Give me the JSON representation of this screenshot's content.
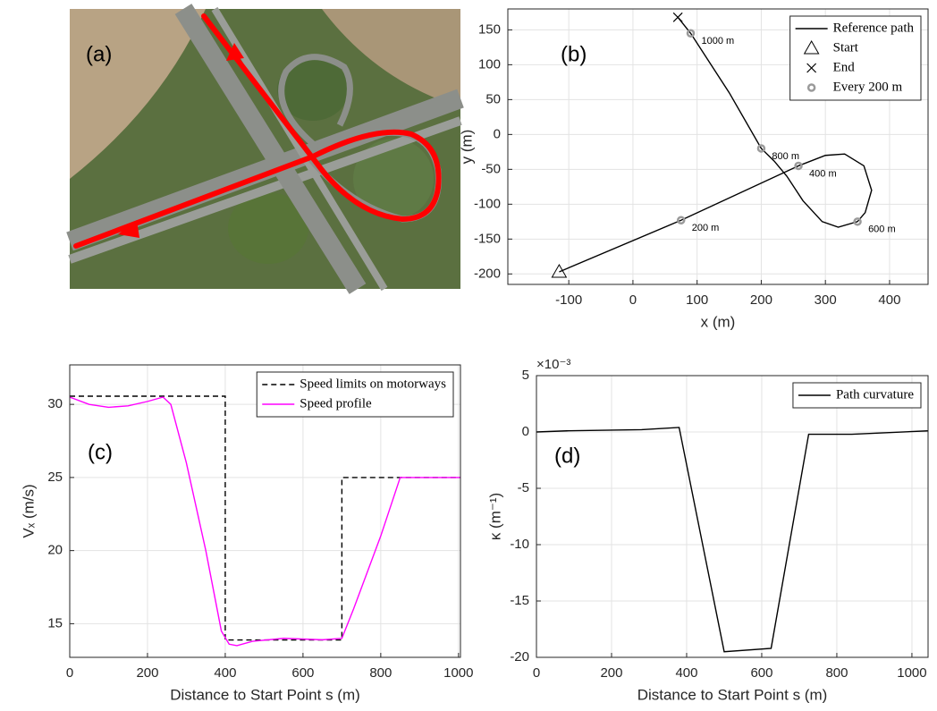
{
  "image": {
    "label": "(a)"
  },
  "chart_data": [
    {
      "type": "line",
      "panel_label": "(b)",
      "xlabel": "x (m)",
      "ylabel": "y (m)",
      "xlim": [
        -195,
        460
      ],
      "ylim": [
        -215,
        180
      ],
      "xticks": [
        -100,
        0,
        100,
        200,
        300,
        400
      ],
      "yticks": [
        -200,
        -150,
        -100,
        -50,
        0,
        50,
        100,
        150
      ],
      "grid": true,
      "legend": "upper right",
      "series": [
        {
          "name": "Reference path",
          "color": "#000000",
          "marker": "none",
          "x": [
            -115,
            75,
            258,
            300,
            330,
            360,
            372,
            362,
            350,
            320,
            295,
            265,
            240,
            220,
            200,
            150,
            90,
            70
          ],
          "values": [
            -197,
            -123,
            -45,
            -30,
            -28,
            -45,
            -80,
            -112,
            -125,
            -133,
            -125,
            -95,
            -60,
            -38,
            -20,
            60,
            145,
            168
          ]
        },
        {
          "name": "Start",
          "color": "#000000",
          "marker": "triangle",
          "x": [
            -115
          ],
          "values": [
            -197
          ]
        },
        {
          "name": "End",
          "color": "#000000",
          "marker": "x",
          "x": [
            70
          ],
          "values": [
            168
          ]
        },
        {
          "name": "Every 200 m",
          "color": "#9a9a9a",
          "marker": "circle",
          "x": [
            75,
            258,
            350,
            200,
            90
          ],
          "values": [
            -123,
            -45,
            -125,
            -20,
            145
          ],
          "labels": [
            "200 m",
            "400 m",
            "600 m",
            "800 m",
            "1000 m"
          ]
        }
      ]
    },
    {
      "type": "line",
      "panel_label": "(c)",
      "xlabel": "Distance to Start Point s (m)",
      "ylabel": "Vₓ (m/s)",
      "xlim": [
        0,
        1005
      ],
      "ylim": [
        12.7,
        32.7
      ],
      "xticks": [
        0,
        200,
        400,
        600,
        800,
        1000
      ],
      "yticks": [
        15,
        20,
        25,
        30
      ],
      "grid": true,
      "legend": "upper right",
      "series": [
        {
          "name": "Speed limits on motorways",
          "color": "#000000",
          "style": "dashed",
          "marker": "none",
          "x": [
            0,
            400,
            400,
            700,
            700,
            1005
          ],
          "values": [
            30.56,
            30.56,
            13.89,
            13.89,
            25,
            25
          ]
        },
        {
          "name": "Speed profile",
          "color": "#ff00ff",
          "marker": "none",
          "x": [
            0,
            50,
            100,
            150,
            200,
            240,
            260,
            300,
            350,
            390,
            410,
            430,
            470,
            550,
            650,
            700,
            730,
            800,
            850,
            1005
          ],
          "values": [
            30.5,
            30,
            29.8,
            29.9,
            30.2,
            30.5,
            30,
            26,
            20,
            14.5,
            13.6,
            13.5,
            13.8,
            14,
            13.9,
            14,
            16,
            21,
            25,
            25
          ]
        }
      ]
    },
    {
      "type": "line",
      "panel_label": "(d)",
      "xlabel": "Distance to Start Point s (m)",
      "ylabel": "κ (m⁻¹)",
      "y_multiplier": "×10⁻³",
      "xlim": [
        0,
        1043
      ],
      "ylim": [
        -20,
        5
      ],
      "xticks": [
        0,
        200,
        400,
        600,
        800,
        1000
      ],
      "yticks": [
        -20,
        -15,
        -10,
        -5,
        0,
        5
      ],
      "grid": true,
      "legend": "upper right",
      "series": [
        {
          "name": "Path curvature",
          "color": "#000000",
          "marker": "none",
          "x": [
            0,
            80,
            280,
            380,
            500,
            625,
            725,
            840,
            1043
          ],
          "values": [
            0,
            0.1,
            0.2,
            0.4,
            -19.5,
            -19.2,
            -0.2,
            -0.2,
            0.1
          ]
        }
      ]
    }
  ]
}
